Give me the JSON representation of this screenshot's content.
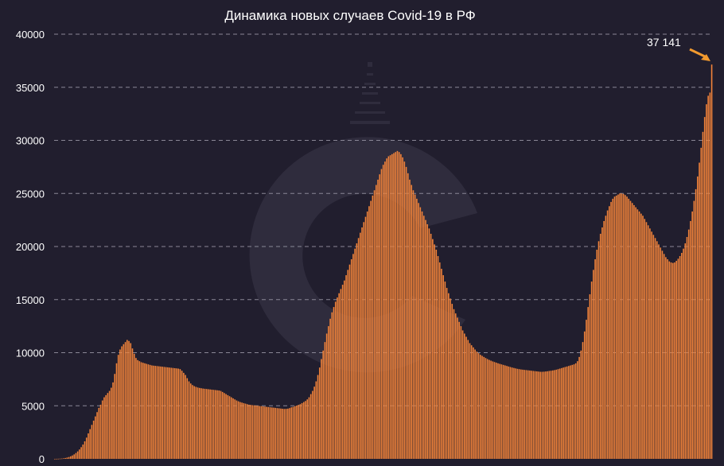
{
  "chart_data": {
    "type": "bar",
    "title": "Динамика новых случаев Covid-19 в РФ",
    "xlabel": "",
    "ylabel": "",
    "ylim": [
      0,
      40000
    ],
    "yticks": [
      0,
      5000,
      10000,
      15000,
      20000,
      25000,
      30000,
      35000,
      40000
    ],
    "grid": "horizontal dashed",
    "legend": "none",
    "bar_color": "#f2833a",
    "callout_color": "#f29a2e",
    "annotation": {
      "text": "37 141",
      "target": "last"
    },
    "series": [
      {
        "values": [
          2,
          5,
          10,
          20,
          30,
          50,
          80,
          120,
          170,
          240,
          320,
          420,
          550,
          700,
          880,
          1100,
          1350,
          1650,
          2000,
          2400,
          2800,
          3200,
          3600,
          4000,
          4400,
          4800,
          5100,
          5500,
          5800,
          6000,
          6200,
          6400,
          6700,
          7200,
          8000,
          9000,
          9800,
          10300,
          10600,
          10800,
          11000,
          11200,
          11100,
          10900,
          10400,
          9900,
          9500,
          9300,
          9200,
          9100,
          9050,
          9000,
          8950,
          8900,
          8850,
          8800,
          8780,
          8760,
          8740,
          8720,
          8700,
          8680,
          8660,
          8640,
          8620,
          8600,
          8580,
          8560,
          8540,
          8520,
          8500,
          8450,
          8300,
          8100,
          7900,
          7600,
          7300,
          7100,
          6950,
          6850,
          6780,
          6720,
          6680,
          6650,
          6620,
          6600,
          6580,
          6560,
          6540,
          6520,
          6500,
          6480,
          6460,
          6440,
          6400,
          6300,
          6200,
          6100,
          6000,
          5900,
          5800,
          5700,
          5600,
          5500,
          5420,
          5350,
          5300,
          5250,
          5200,
          5150,
          5100,
          5080,
          5060,
          5040,
          5020,
          5000,
          4980,
          4960,
          4940,
          4920,
          4900,
          4880,
          4860,
          4840,
          4820,
          4800,
          4780,
          4760,
          4740,
          4720,
          4700,
          4710,
          4730,
          4780,
          4850,
          4900,
          4960,
          5020,
          5080,
          5150,
          5250,
          5350,
          5450,
          5600,
          5800,
          6100,
          6400,
          6800,
          7300,
          7900,
          8600,
          9400,
          10200,
          11000,
          11800,
          12500,
          13200,
          13800,
          14300,
          14800,
          15200,
          15600,
          16000,
          16400,
          16800,
          17300,
          17800,
          18300,
          18800,
          19300,
          19800,
          20300,
          20800,
          21300,
          21800,
          22300,
          22800,
          23300,
          23800,
          24300,
          24800,
          25300,
          25800,
          26300,
          26800,
          27300,
          27700,
          28000,
          28300,
          28500,
          28600,
          28700,
          28800,
          28900,
          29000,
          28900,
          28700,
          28400,
          28000,
          27500,
          26900,
          26300,
          25800,
          25300,
          24900,
          24500,
          24100,
          23700,
          23300,
          22900,
          22500,
          22100,
          21700,
          21200,
          20700,
          20200,
          19700,
          19100,
          18500,
          17900,
          17300,
          16700,
          16100,
          15600,
          15100,
          14600,
          14100,
          13700,
          13300,
          12900,
          12500,
          12100,
          11800,
          11500,
          11200,
          10900,
          10700,
          10500,
          10300,
          10100,
          9950,
          9800,
          9700,
          9600,
          9500,
          9400,
          9320,
          9250,
          9180,
          9120,
          9060,
          9000,
          8950,
          8900,
          8850,
          8800,
          8750,
          8700,
          8650,
          8600,
          8560,
          8520,
          8480,
          8450,
          8420,
          8400,
          8380,
          8360,
          8340,
          8320,
          8300,
          8280,
          8260,
          8240,
          8220,
          8200,
          8200,
          8210,
          8230,
          8250,
          8280,
          8300,
          8330,
          8360,
          8400,
          8450,
          8500,
          8550,
          8600,
          8650,
          8700,
          8750,
          8800,
          8850,
          8900,
          9000,
          9200,
          9600,
          10200,
          11000,
          12000,
          13100,
          14300,
          15500,
          16700,
          17800,
          18800,
          19700,
          20500,
          21200,
          21800,
          22400,
          22900,
          23400,
          23800,
          24200,
          24500,
          24700,
          24800,
          24900,
          25000,
          25000,
          24950,
          24850,
          24700,
          24500,
          24300,
          24100,
          23900,
          23700,
          23500,
          23300,
          23100,
          22900,
          22600,
          22300,
          22000,
          21700,
          21400,
          21100,
          20800,
          20500,
          20200,
          19900,
          19600,
          19300,
          19000,
          18800,
          18600,
          18500,
          18450,
          18500,
          18650,
          18850,
          19100,
          19400,
          19800,
          20300,
          20900,
          21600,
          22400,
          23300,
          24300,
          25400,
          26600,
          27900,
          29300,
          30800,
          32200,
          33400,
          34200,
          34500,
          37141
        ]
      }
    ]
  }
}
